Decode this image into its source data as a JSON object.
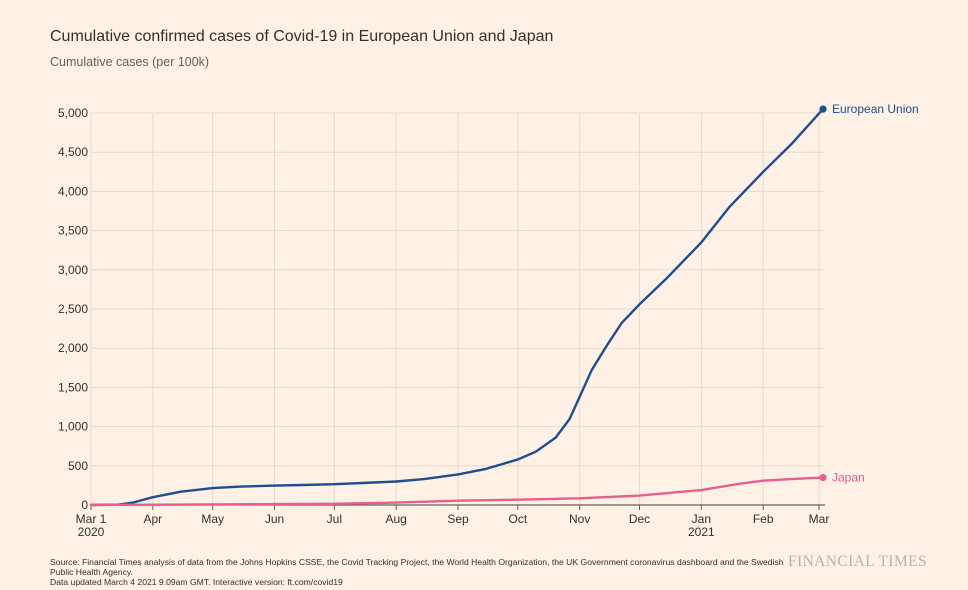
{
  "chart_data": {
    "type": "line",
    "title": "Cumulative confirmed cases of Covid-19 in European Union and Japan",
    "ylabel": "Cumulative cases (per 100k)",
    "xlabel": "",
    "ylim": [
      0,
      5000
    ],
    "yticks": [
      0,
      500,
      1000,
      1500,
      2000,
      2500,
      3000,
      3500,
      4000,
      4500,
      5000
    ],
    "ytick_labels": [
      "0",
      "500",
      "1,000",
      "1,500",
      "2,000",
      "2,500",
      "3,000",
      "3,500",
      "4,000",
      "4,500",
      "5,000"
    ],
    "xlim": [
      "2020-03-01",
      "2021-03-04"
    ],
    "xticks": [
      {
        "date": "2020-03-01",
        "label": "Mar 1",
        "sublabel": "2020"
      },
      {
        "date": "2020-04-01",
        "label": "Apr",
        "sublabel": ""
      },
      {
        "date": "2020-05-01",
        "label": "May",
        "sublabel": ""
      },
      {
        "date": "2020-06-01",
        "label": "Jun",
        "sublabel": ""
      },
      {
        "date": "2020-07-01",
        "label": "Jul",
        "sublabel": ""
      },
      {
        "date": "2020-08-01",
        "label": "Aug",
        "sublabel": ""
      },
      {
        "date": "2020-09-01",
        "label": "Sep",
        "sublabel": ""
      },
      {
        "date": "2020-10-01",
        "label": "Oct",
        "sublabel": ""
      },
      {
        "date": "2020-11-01",
        "label": "Nov",
        "sublabel": ""
      },
      {
        "date": "2020-12-01",
        "label": "Dec",
        "sublabel": ""
      },
      {
        "date": "2021-01-01",
        "label": "Jan",
        "sublabel": "2021"
      },
      {
        "date": "2021-02-01",
        "label": "Feb",
        "sublabel": ""
      },
      {
        "date": "2021-03-01",
        "label": "Mar",
        "sublabel": ""
      }
    ],
    "grid": true,
    "legend": "end-labels",
    "series": [
      {
        "name": "European Union",
        "color": "#1d4e8f",
        "points": [
          [
            "2020-03-01",
            0
          ],
          [
            "2020-03-15",
            5
          ],
          [
            "2020-03-22",
            30
          ],
          [
            "2020-04-01",
            100
          ],
          [
            "2020-04-15",
            170
          ],
          [
            "2020-05-01",
            215
          ],
          [
            "2020-05-15",
            235
          ],
          [
            "2020-06-01",
            248
          ],
          [
            "2020-06-15",
            255
          ],
          [
            "2020-07-01",
            265
          ],
          [
            "2020-07-15",
            280
          ],
          [
            "2020-08-01",
            300
          ],
          [
            "2020-08-15",
            330
          ],
          [
            "2020-09-01",
            390
          ],
          [
            "2020-09-15",
            460
          ],
          [
            "2020-10-01",
            580
          ],
          [
            "2020-10-10",
            680
          ],
          [
            "2020-10-20",
            860
          ],
          [
            "2020-10-27",
            1100
          ],
          [
            "2020-11-01",
            1380
          ],
          [
            "2020-11-07",
            1720
          ],
          [
            "2020-11-15",
            2050
          ],
          [
            "2020-11-22",
            2320
          ],
          [
            "2020-12-01",
            2560
          ],
          [
            "2020-12-15",
            2900
          ],
          [
            "2021-01-01",
            3350
          ],
          [
            "2021-01-15",
            3800
          ],
          [
            "2021-02-01",
            4250
          ],
          [
            "2021-02-15",
            4600
          ],
          [
            "2021-03-03",
            5050
          ]
        ]
      },
      {
        "name": "Japan",
        "color": "#e5608e",
        "points": [
          [
            "2020-03-01",
            0
          ],
          [
            "2020-04-15",
            5
          ],
          [
            "2020-06-01",
            12
          ],
          [
            "2020-07-01",
            15
          ],
          [
            "2020-08-01",
            30
          ],
          [
            "2020-09-01",
            55
          ],
          [
            "2020-10-01",
            68
          ],
          [
            "2020-11-01",
            85
          ],
          [
            "2020-12-01",
            120
          ],
          [
            "2021-01-01",
            190
          ],
          [
            "2021-01-20",
            270
          ],
          [
            "2021-02-01",
            310
          ],
          [
            "2021-02-15",
            330
          ],
          [
            "2021-03-03",
            350
          ]
        ]
      }
    ]
  },
  "source_text": "Source: Financial Times analysis of data from the Johns Hopkins CSSE, the Covid Tracking Project, the World Health Organization, the UK Government coronavirus dashboard and the Swedish Public Health Agency.",
  "updated_text": "Data updated March 4 2021 9.09am GMT. Interactive version: ft.com/covid19",
  "logo_text": "FINANCIAL TIMES",
  "colors": {
    "background": "#fff1e5",
    "grid": "#e6d9ce",
    "axis": "#66605c",
    "text": "#33302e"
  }
}
